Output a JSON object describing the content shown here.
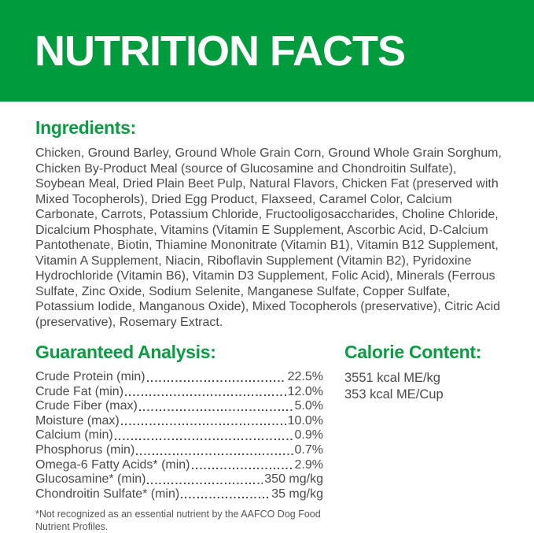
{
  "header": {
    "title": "NUTRITION FACTS",
    "bg_color": "#009B3C",
    "text_color": "#FFFFFF"
  },
  "colors": {
    "accent_green": "#009B3C",
    "heading_green": "#0A9C42",
    "body_text": "#4A4A4A"
  },
  "ingredients": {
    "heading": "Ingredients:",
    "text": "Chicken, Ground Barley, Ground Whole Grain Corn, Ground Whole Grain Sorghum, Chicken By-Product Meal (source of Glucosamine and Chondroitin Sulfate), Soybean Meal, Dried Plain Beet Pulp, Natural Flavors, Chicken Fat (preserved with Mixed Tocopherols), Dried Egg Product, Flaxseed, Caramel Color, Calcium Carbonate, Carrots, Potassium Chloride, Fructooligosaccharides, Choline Chloride, Dicalcium Phosphate, Vitamins (Vitamin E Supplement, Ascorbic Acid, D-Calcium Pantothenate, Biotin, Thiamine Mononitrate (Vitamin B1), Vitamin B12 Supplement, Vitamin A Supplement, Niacin, Riboflavin Supplement (Vitamin B2), Pyridoxine Hydrochloride (Vitamin B6), Vitamin D3 Supplement, Folic Acid), Minerals (Ferrous Sulfate, Zinc Oxide, Sodium Selenite, Manganese Sulfate, Copper Sulfate, Potassium Iodide, Manganous Oxide), Mixed Tocopherols (preservative), Citric Acid (preservative), Rosemary Extract."
  },
  "guaranteed_analysis": {
    "heading": "Guaranteed Analysis:",
    "rows": [
      {
        "label": "Crude Protein (min)",
        "value": "22.5%"
      },
      {
        "label": "Crude Fat (min)",
        "value": "12.0%"
      },
      {
        "label": "Crude Fiber (max)",
        "value": "5.0%"
      },
      {
        "label": "Moisture (max)",
        "value": "10.0%"
      },
      {
        "label": "Calcium (min)",
        "value": "0.9%"
      },
      {
        "label": "Phosphorus (min)",
        "value": "0.7%"
      },
      {
        "label": "Omega-6 Fatty Acids* (min)",
        "value": "2.9%"
      },
      {
        "label": "Glucosamine* (min)",
        "value": "350 mg/kg"
      },
      {
        "label": "Chondroitin Sulfate* (min)",
        "value": "35 mg/kg"
      }
    ],
    "footnote": "*Not recognized as an essential nutrient by the AAFCO Dog Food Nutrient Profiles."
  },
  "calorie_content": {
    "heading": "Calorie Content:",
    "lines": [
      "3551 kcal ME/kg",
      "353 kcal ME/Cup"
    ]
  }
}
